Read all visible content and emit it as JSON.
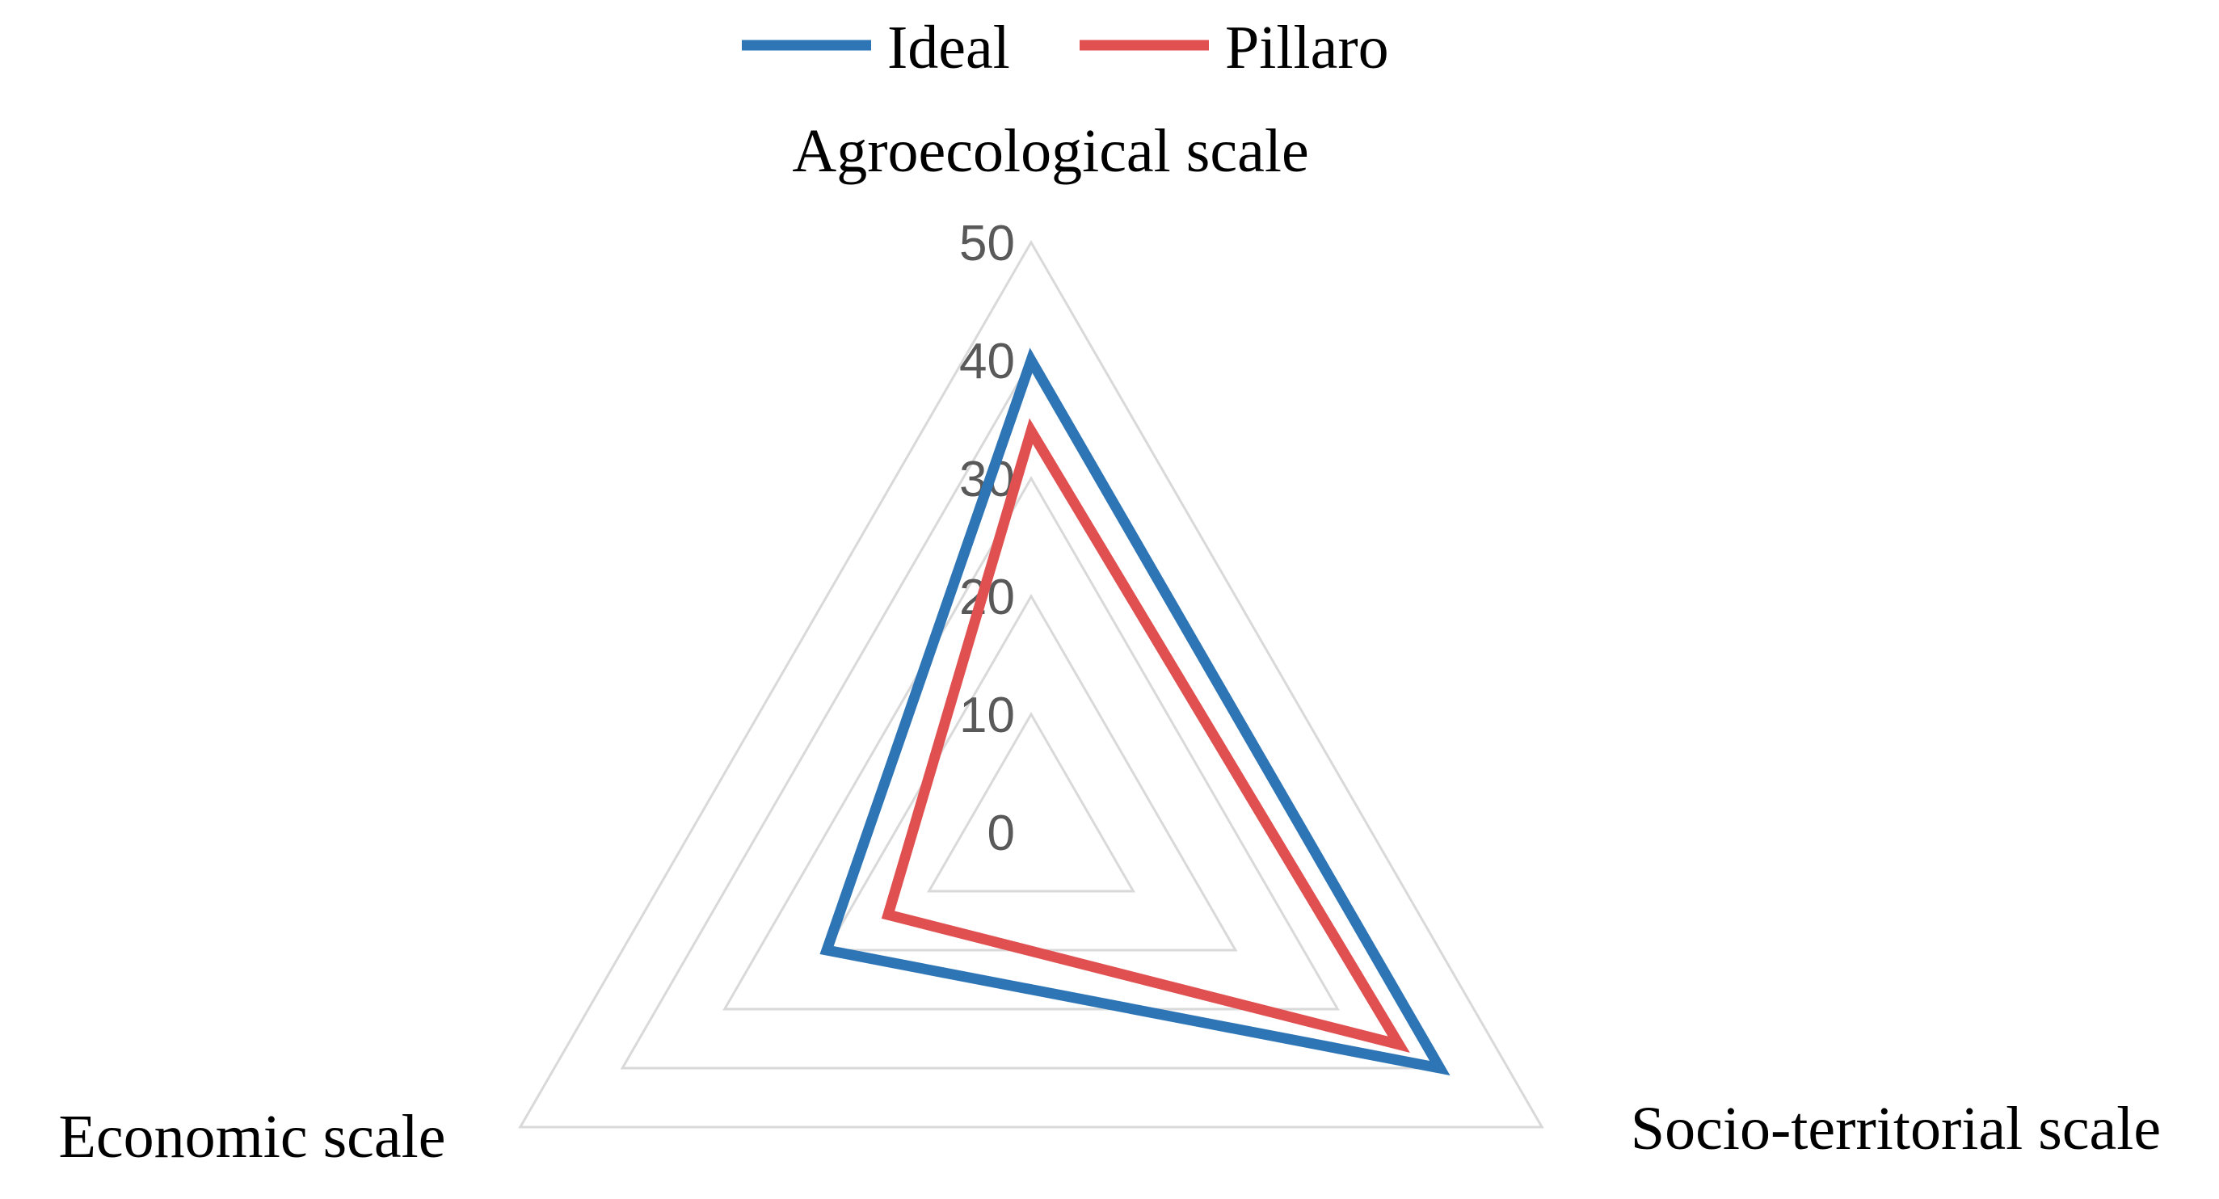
{
  "chart_data": {
    "type": "radar",
    "axes": [
      "Agroecological scale",
      "Socio-territorial scale",
      "Economic scale"
    ],
    "r_range": [
      0,
      50
    ],
    "ticks": [
      0,
      10,
      20,
      30,
      40,
      50
    ],
    "grid": true,
    "legend_position": "top",
    "series": [
      {
        "name": "Ideal",
        "color": "#2e75b6",
        "values": [
          40,
          40,
          20
        ]
      },
      {
        "name": "Pillaro",
        "color": "#e05050",
        "values": [
          34,
          36,
          14
        ]
      }
    ]
  }
}
